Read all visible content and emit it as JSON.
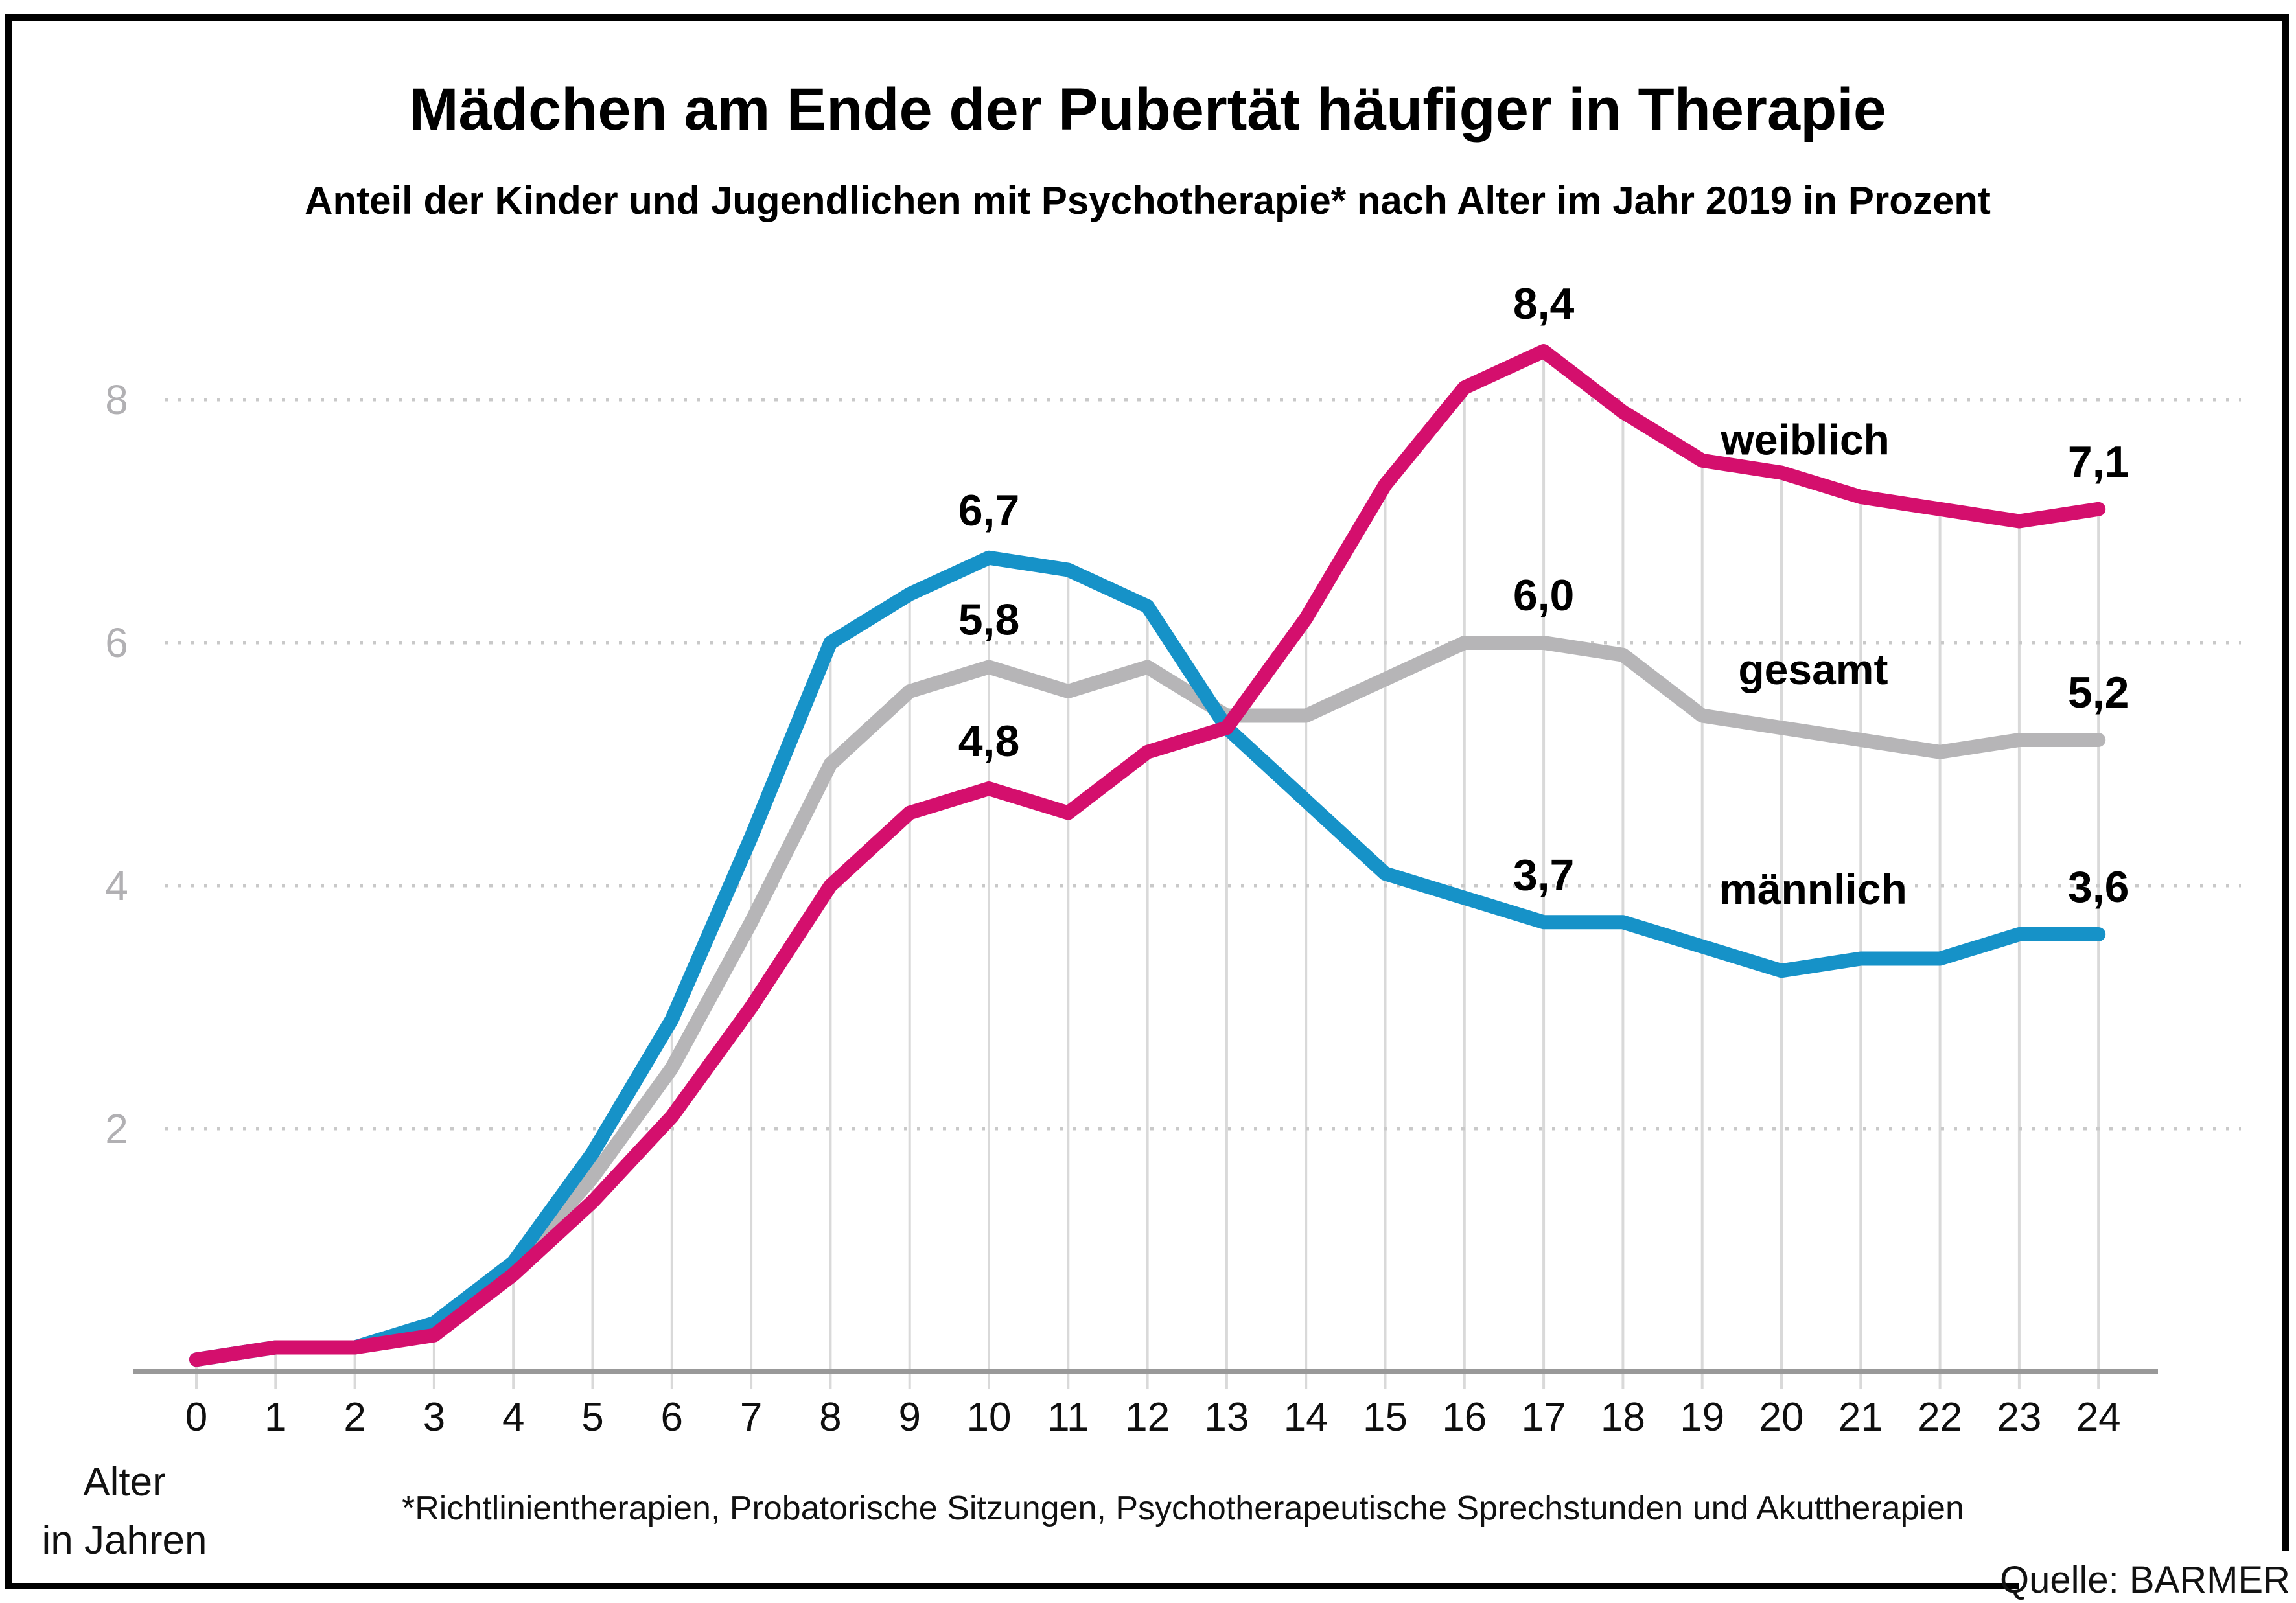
{
  "header": {
    "title": "Mädchen am Ende der Pubertät häufiger in Therapie",
    "subtitle": "Anteil der Kinder und Jugendlichen mit Psychotherapie* nach Alter im Jahr 2019 in Prozent"
  },
  "footnote": "*Richtlinientherapien, Probatorische Sitzungen, Psychotherapeutische Sprechstunden und Akuttherapien",
  "source": "Quelle: BARMER",
  "x_axis_title": {
    "line1": "Alter",
    "line2": "in Jahren"
  },
  "colors": {
    "weiblich": "#d40f6d",
    "maennlich": "#1692c8",
    "gesamt": "#b6b5b7",
    "h_gridline": "#c9c9c9",
    "v_gridline": "#d9d9d9",
    "axis_line": "#999999",
    "ytick_label": "#b1b0b3",
    "frame_border": "#000000"
  },
  "chart_data": {
    "type": "line",
    "x": [
      0,
      1,
      2,
      3,
      4,
      5,
      6,
      7,
      8,
      9,
      10,
      11,
      12,
      13,
      14,
      15,
      16,
      17,
      18,
      19,
      20,
      21,
      22,
      23,
      24
    ],
    "xlabel": "Alter in Jahren",
    "ylabel": "",
    "ylim": [
      0,
      9
    ],
    "yticks": [
      2,
      4,
      6,
      8
    ],
    "grid": {
      "horizontal": "dotted",
      "vertical": "solid, per age, from axis up to topmost line"
    },
    "legend_position": "inline labels beside lines",
    "series": [
      {
        "name": "weiblich",
        "color": "#d40f6d",
        "values": [
          0.1,
          0.2,
          0.2,
          0.3,
          0.8,
          1.4,
          2.1,
          3.0,
          4.0,
          4.6,
          4.8,
          4.6,
          5.1,
          5.3,
          6.2,
          7.3,
          8.1,
          8.4,
          7.9,
          7.5,
          7.4,
          7.2,
          7.1,
          7.0,
          7.1
        ]
      },
      {
        "name": "gesamt",
        "color": "#b6b5b7",
        "values": [
          0.1,
          0.2,
          0.2,
          0.35,
          0.85,
          1.6,
          2.5,
          3.7,
          5.0,
          5.6,
          5.8,
          5.6,
          5.8,
          5.4,
          5.4,
          5.7,
          6.0,
          6.0,
          5.9,
          5.4,
          5.3,
          5.2,
          5.1,
          5.2,
          5.2
        ]
      },
      {
        "name": "männlich",
        "color": "#1692c8",
        "values": [
          0.1,
          0.2,
          0.2,
          0.4,
          0.9,
          1.8,
          2.9,
          4.4,
          6.0,
          6.4,
          6.7,
          6.6,
          6.3,
          5.3,
          4.7,
          4.1,
          3.9,
          3.7,
          3.7,
          3.5,
          3.3,
          3.4,
          3.4,
          3.6,
          3.6
        ]
      }
    ],
    "draw_order": [
      "gesamt",
      "männlich",
      "weiblich"
    ],
    "annotations": [
      {
        "text": "6,7",
        "series": "männlich",
        "age": 10,
        "value": 6.7
      },
      {
        "text": "5,8",
        "series": "gesamt",
        "age": 10,
        "value": 5.8
      },
      {
        "text": "4,8",
        "series": "weiblich",
        "age": 10,
        "value": 4.8
      },
      {
        "text": "8,4",
        "series": "weiblich",
        "age": 17,
        "value": 8.4
      },
      {
        "text": "6,0",
        "series": "gesamt",
        "age": 17,
        "value": 6.0
      },
      {
        "text": "3,7",
        "series": "männlich",
        "age": 17,
        "value": 3.7
      },
      {
        "text": "7,1",
        "series": "weiblich",
        "age": 24,
        "value": 7.1
      },
      {
        "text": "5,2",
        "series": "gesamt",
        "age": 24,
        "value": 5.2
      },
      {
        "text": "3,6",
        "series": "männlich",
        "age": 24,
        "value": 3.6
      }
    ],
    "series_labels": [
      {
        "text": "weiblich",
        "age": 20.3,
        "value": 7.55
      },
      {
        "text": "gesamt",
        "age": 20.4,
        "value": 5.66
      },
      {
        "text": "männlich",
        "age": 20.4,
        "value": 3.85
      }
    ]
  }
}
